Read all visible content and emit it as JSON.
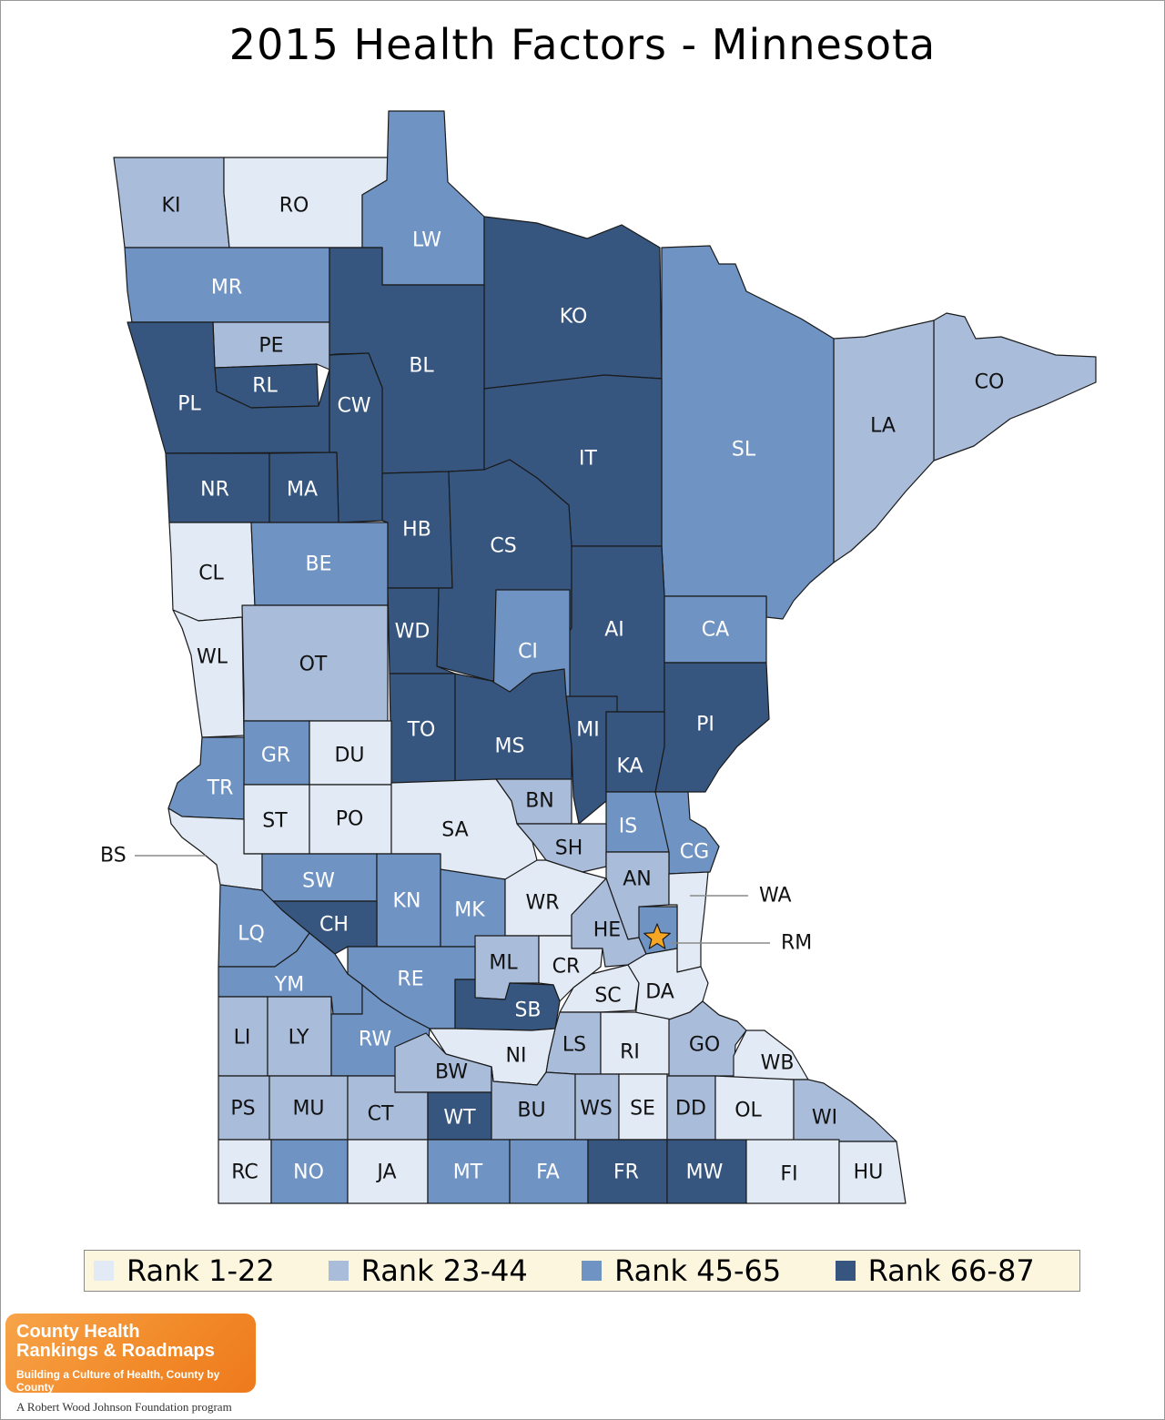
{
  "title": "2015 Health Factors - Minnesota",
  "colors": {
    "rank_1_22": "#e2eaf5",
    "rank_23_44": "#a9bcda",
    "rank_45_65": "#6f94c4",
    "rank_66_87": "#36567f",
    "star": "#f6a623"
  },
  "legend": [
    {
      "label": "Rank 1-22",
      "class": "rank_1_22"
    },
    {
      "label": "Rank 23-44",
      "class": "rank_23_44"
    },
    {
      "label": "Rank 45-65",
      "class": "rank_45_65"
    },
    {
      "label": "Rank 66-87",
      "class": "rank_66_87"
    }
  ],
  "counties": [
    {
      "code": "KI",
      "class": "rank_23_44"
    },
    {
      "code": "RO",
      "class": "rank_1_22"
    },
    {
      "code": "LW",
      "class": "rank_45_65"
    },
    {
      "code": "MR",
      "class": "rank_45_65"
    },
    {
      "code": "KO",
      "class": "rank_66_87"
    },
    {
      "code": "PE",
      "class": "rank_23_44"
    },
    {
      "code": "BL",
      "class": "rank_66_87"
    },
    {
      "code": "RL",
      "class": "rank_66_87"
    },
    {
      "code": "PL",
      "class": "rank_66_87"
    },
    {
      "code": "CW",
      "class": "rank_66_87"
    },
    {
      "code": "CO",
      "class": "rank_23_44"
    },
    {
      "code": "LA",
      "class": "rank_23_44"
    },
    {
      "code": "SL",
      "class": "rank_45_65"
    },
    {
      "code": "IT",
      "class": "rank_66_87"
    },
    {
      "code": "NR",
      "class": "rank_66_87"
    },
    {
      "code": "MA",
      "class": "rank_66_87"
    },
    {
      "code": "HB",
      "class": "rank_66_87"
    },
    {
      "code": "CS",
      "class": "rank_66_87"
    },
    {
      "code": "CL",
      "class": "rank_1_22"
    },
    {
      "code": "BE",
      "class": "rank_45_65"
    },
    {
      "code": "WD",
      "class": "rank_66_87"
    },
    {
      "code": "AI",
      "class": "rank_66_87"
    },
    {
      "code": "CA",
      "class": "rank_45_65"
    },
    {
      "code": "CI",
      "class": "rank_45_65"
    },
    {
      "code": "WL",
      "class": "rank_1_22"
    },
    {
      "code": "OT",
      "class": "rank_23_44"
    },
    {
      "code": "TO",
      "class": "rank_66_87"
    },
    {
      "code": "PI",
      "class": "rank_66_87"
    },
    {
      "code": "MI",
      "class": "rank_66_87"
    },
    {
      "code": "MS",
      "class": "rank_66_87"
    },
    {
      "code": "GR",
      "class": "rank_45_65"
    },
    {
      "code": "DU",
      "class": "rank_1_22"
    },
    {
      "code": "KA",
      "class": "rank_66_87"
    },
    {
      "code": "TR",
      "class": "rank_45_65"
    },
    {
      "code": "BN",
      "class": "rank_23_44"
    },
    {
      "code": "ST",
      "class": "rank_1_22"
    },
    {
      "code": "PO",
      "class": "rank_1_22"
    },
    {
      "code": "SA",
      "class": "rank_1_22"
    },
    {
      "code": "IS",
      "class": "rank_45_65"
    },
    {
      "code": "SH",
      "class": "rank_23_44"
    },
    {
      "code": "CG",
      "class": "rank_45_65"
    },
    {
      "code": "BS",
      "class": "rank_1_22"
    },
    {
      "code": "SW",
      "class": "rank_45_65"
    },
    {
      "code": "KN",
      "class": "rank_45_65"
    },
    {
      "code": "AN",
      "class": "rank_23_44"
    },
    {
      "code": "WA",
      "class": "rank_1_22"
    },
    {
      "code": "MK",
      "class": "rank_45_65"
    },
    {
      "code": "WR",
      "class": "rank_1_22"
    },
    {
      "code": "CH",
      "class": "rank_66_87"
    },
    {
      "code": "LQ",
      "class": "rank_45_65"
    },
    {
      "code": "HE",
      "class": "rank_23_44"
    },
    {
      "code": "RM",
      "class": "rank_45_65"
    },
    {
      "code": "ML",
      "class": "rank_23_44"
    },
    {
      "code": "CR",
      "class": "rank_1_22"
    },
    {
      "code": "RE",
      "class": "rank_45_65"
    },
    {
      "code": "YM",
      "class": "rank_45_65"
    },
    {
      "code": "SC",
      "class": "rank_1_22"
    },
    {
      "code": "DA",
      "class": "rank_1_22"
    },
    {
      "code": "SB",
      "class": "rank_66_87"
    },
    {
      "code": "LI",
      "class": "rank_23_44"
    },
    {
      "code": "LY",
      "class": "rank_23_44"
    },
    {
      "code": "RW",
      "class": "rank_45_65"
    },
    {
      "code": "LS",
      "class": "rank_23_44"
    },
    {
      "code": "RI",
      "class": "rank_1_22"
    },
    {
      "code": "GO",
      "class": "rank_23_44"
    },
    {
      "code": "NI",
      "class": "rank_1_22"
    },
    {
      "code": "WB",
      "class": "rank_1_22"
    },
    {
      "code": "BW",
      "class": "rank_23_44"
    },
    {
      "code": "PS",
      "class": "rank_23_44"
    },
    {
      "code": "MU",
      "class": "rank_23_44"
    },
    {
      "code": "CT",
      "class": "rank_23_44"
    },
    {
      "code": "WT",
      "class": "rank_66_87"
    },
    {
      "code": "BU",
      "class": "rank_23_44"
    },
    {
      "code": "WS",
      "class": "rank_23_44"
    },
    {
      "code": "SE",
      "class": "rank_1_22"
    },
    {
      "code": "DD",
      "class": "rank_23_44"
    },
    {
      "code": "OL",
      "class": "rank_1_22"
    },
    {
      "code": "WI",
      "class": "rank_23_44"
    },
    {
      "code": "RC",
      "class": "rank_1_22"
    },
    {
      "code": "NO",
      "class": "rank_45_65"
    },
    {
      "code": "JA",
      "class": "rank_1_22"
    },
    {
      "code": "MT",
      "class": "rank_45_65"
    },
    {
      "code": "FA",
      "class": "rank_45_65"
    },
    {
      "code": "FR",
      "class": "rank_66_87"
    },
    {
      "code": "MW",
      "class": "rank_66_87"
    },
    {
      "code": "FI",
      "class": "rank_1_22"
    },
    {
      "code": "HU",
      "class": "rank_1_22"
    }
  ],
  "logo": {
    "line1": "County Health",
    "line2": "Rankings & Roadmaps",
    "tagline": "Building a Culture of Health, County by County",
    "sub": "A Robert Wood Johnson Foundation program"
  }
}
